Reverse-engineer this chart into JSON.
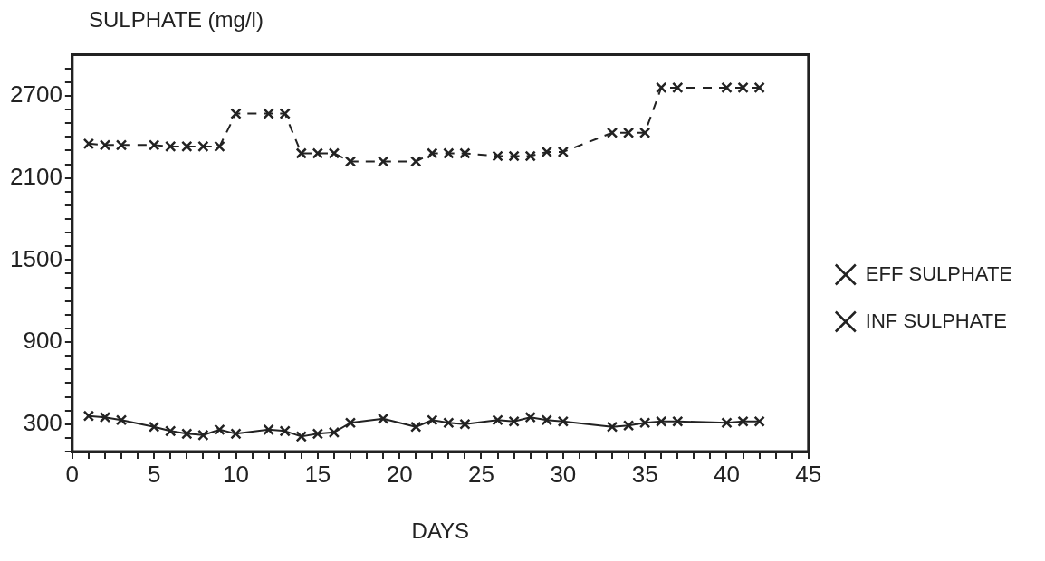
{
  "chart_data": {
    "type": "line",
    "ylabel": "SULPHATE (mg/l)",
    "xlabel": "DAYS",
    "xlim": [
      0,
      45
    ],
    "ylim": [
      100,
      3000
    ],
    "xticks": [
      0,
      {
        "value": 1,
        "label": null
      },
      {
        "value": 2,
        "label": null
      },
      {
        "value": 3,
        "label": null
      },
      {
        "value": 4,
        "label": null
      },
      5,
      {
        "value": 6,
        "label": null
      },
      {
        "value": 7,
        "label": null
      },
      {
        "value": 8,
        "label": null
      },
      {
        "value": 9,
        "label": null
      },
      10,
      {
        "value": 11,
        "label": null
      },
      {
        "value": 12,
        "label": null
      },
      {
        "value": 13,
        "label": null
      },
      {
        "value": 14,
        "label": null
      },
      15,
      {
        "value": 16,
        "label": null
      },
      {
        "value": 17,
        "label": null
      },
      {
        "value": 18,
        "label": null
      },
      {
        "value": 19,
        "label": null
      },
      20,
      {
        "value": 21,
        "label": null
      },
      {
        "value": 22,
        "label": null
      },
      {
        "value": 23,
        "label": null
      },
      {
        "value": 24,
        "label": null
      },
      25,
      {
        "value": 26,
        "label": null
      },
      {
        "value": 27,
        "label": null
      },
      {
        "value": 28,
        "label": null
      },
      {
        "value": 29,
        "label": null
      },
      30,
      {
        "value": 31,
        "label": null
      },
      {
        "value": 32,
        "label": null
      },
      {
        "value": 33,
        "label": null
      },
      {
        "value": 34,
        "label": null
      },
      35,
      {
        "value": 36,
        "label": null
      },
      {
        "value": 37,
        "label": null
      },
      {
        "value": 38,
        "label": null
      },
      {
        "value": 39,
        "label": null
      },
      40,
      {
        "value": 41,
        "label": null
      },
      {
        "value": 42,
        "label": null
      },
      {
        "value": 43,
        "label": null
      },
      {
        "value": 44,
        "label": null
      },
      45
    ],
    "yticks": [
      {
        "value": 100,
        "label": null
      },
      {
        "value": 200,
        "label": null
      },
      300,
      {
        "value": 400,
        "label": null
      },
      {
        "value": 500,
        "label": null
      },
      {
        "value": 600,
        "label": null
      },
      {
        "value": 700,
        "label": null
      },
      {
        "value": 800,
        "label": null
      },
      900,
      {
        "value": 1000,
        "label": null
      },
      {
        "value": 1100,
        "label": null
      },
      {
        "value": 1200,
        "label": null
      },
      {
        "value": 1300,
        "label": null
      },
      {
        "value": 1400,
        "label": null
      },
      1500,
      {
        "value": 1600,
        "label": null
      },
      {
        "value": 1700,
        "label": null
      },
      {
        "value": 1800,
        "label": null
      },
      {
        "value": 1900,
        "label": null
      },
      {
        "value": 2000,
        "label": null
      },
      2100,
      {
        "value": 2200,
        "label": null
      },
      {
        "value": 2300,
        "label": null
      },
      {
        "value": 2400,
        "label": null
      },
      {
        "value": 2500,
        "label": null
      },
      {
        "value": 2600,
        "label": null
      },
      2700,
      {
        "value": 2800,
        "label": null
      },
      {
        "value": 2900,
        "label": null
      }
    ],
    "grid": false,
    "legend": "right",
    "marker": "cross",
    "series": [
      {
        "name": "EFF SULPHATE",
        "color": "#222222",
        "line_style": "solid",
        "x": [
          1,
          2,
          3,
          5,
          6,
          7,
          8,
          9,
          10,
          12,
          13,
          14,
          15,
          16,
          17,
          19,
          21,
          22,
          23,
          24,
          26,
          27,
          28,
          29,
          30,
          33,
          34,
          35,
          36,
          37,
          40,
          41,
          42
        ],
        "values": [
          360,
          350,
          330,
          280,
          250,
          230,
          220,
          260,
          230,
          260,
          250,
          210,
          230,
          240,
          310,
          340,
          280,
          330,
          310,
          300,
          330,
          320,
          350,
          330,
          320,
          280,
          290,
          310,
          320,
          320,
          310,
          320,
          320
        ]
      },
      {
        "name": "INF SULPHATE",
        "color": "#222222",
        "line_style": "dashed",
        "x": [
          1,
          2,
          3,
          5,
          6,
          7,
          8,
          9,
          10,
          12,
          13,
          14,
          15,
          16,
          17,
          19,
          21,
          22,
          23,
          24,
          26,
          27,
          28,
          29,
          30,
          33,
          34,
          35,
          36,
          37,
          40,
          41,
          42
        ],
        "values": [
          2350,
          2340,
          2340,
          2340,
          2330,
          2330,
          2330,
          2330,
          2570,
          2570,
          2570,
          2280,
          2280,
          2280,
          2220,
          2220,
          2220,
          2280,
          2280,
          2280,
          2260,
          2260,
          2260,
          2290,
          2290,
          2430,
          2430,
          2430,
          2760,
          2760,
          2760,
          2760,
          2760
        ]
      }
    ]
  }
}
